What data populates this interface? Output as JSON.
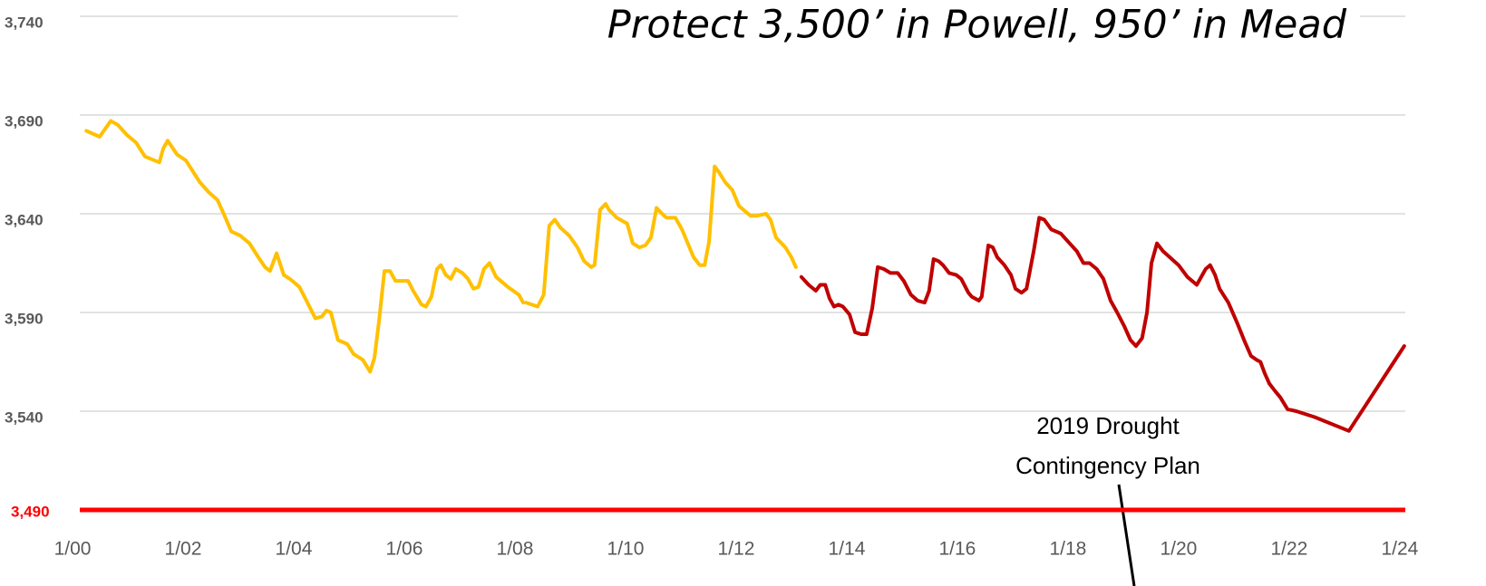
{
  "chart_data": {
    "type": "line",
    "title": "Protect 3,500’ in Powell, 950’ in Mead",
    "annotation": [
      "2019 Drought",
      "Contingency Plan"
    ],
    "xlim": [
      2000,
      2024.1
    ],
    "xticks": [
      {
        "value": 2000,
        "label": "1/00"
      },
      {
        "value": 2002,
        "label": "1/02"
      },
      {
        "value": 2004,
        "label": "1/04"
      },
      {
        "value": 2006,
        "label": "1/06"
      },
      {
        "value": 2008,
        "label": "1/08"
      },
      {
        "value": 2010,
        "label": "1/10"
      },
      {
        "value": 2012,
        "label": "1/12"
      },
      {
        "value": 2014,
        "label": "1/14"
      },
      {
        "value": 2016,
        "label": "1/16"
      },
      {
        "value": 2018,
        "label": "1/18"
      },
      {
        "value": 2020,
        "label": "1/20"
      },
      {
        "value": 2022,
        "label": "1/22"
      },
      {
        "value": 2024,
        "label": "1/24"
      }
    ],
    "ylim": [
      3490,
      3740
    ],
    "yticks": [
      {
        "value": 3540,
        "label": "3,540"
      },
      {
        "value": 3590,
        "label": "3,590"
      },
      {
        "value": 3640,
        "label": "3,640"
      },
      {
        "value": 3690,
        "label": "3,690"
      },
      {
        "value": 3740,
        "label": "3,740"
      }
    ],
    "threshold": {
      "value": 3490,
      "label": "3,490",
      "color": "#ff0000"
    },
    "grid": true,
    "series": [
      {
        "color": "#ffc000",
        "x": [
          2000.25,
          2000.49,
          2000.69,
          2000.82,
          2000.98,
          2001.15,
          2001.31,
          2001.57,
          2001.64,
          2001.72,
          2001.89,
          2002.05,
          2002.3,
          2002.46,
          2002.62,
          2002.75,
          2002.87,
          2003.03,
          2003.2,
          2003.36,
          2003.48,
          2003.57,
          2003.69,
          2003.82,
          2003.93,
          2004.1,
          2004.23,
          2004.39,
          2004.51,
          2004.59,
          2004.67,
          2004.8,
          2004.97,
          2005.08,
          2005.25,
          2005.38,
          2005.46,
          2005.54,
          2005.64,
          2005.74,
          2005.84,
          2006.07,
          2006.16,
          2006.31,
          2006.39,
          2006.49,
          2006.59,
          2006.66,
          2006.75,
          2006.84,
          2006.93,
          2007.05,
          2007.15,
          2007.25,
          2007.34,
          2007.44,
          2007.54,
          2007.66,
          2007.87,
          2008.07,
          2008.15,
          2008.17,
          2008.2,
          2008.41,
          2008.52,
          2008.62,
          2008.72,
          2008.82,
          2008.98,
          2009.13,
          2009.25,
          2009.38,
          2009.44,
          2009.54,
          2009.64,
          2009.7,
          2009.84,
          2010.03,
          2010.13,
          2010.25,
          2010.36,
          2010.46,
          2010.56,
          2010.66,
          2010.74,
          2010.9,
          2011.02,
          2011.23,
          2011.34,
          2011.43,
          2011.51,
          2011.61,
          2011.69,
          2011.8,
          2011.93,
          2012.05,
          2012.13,
          2012.26,
          2012.38,
          2012.54,
          2012.62,
          2012.72,
          2012.89,
          2013.0,
          2013.08
        ],
        "values": [
          3682,
          3679,
          3687,
          3685,
          3680,
          3676,
          3669,
          3666,
          3673,
          3677,
          3670,
          3667,
          3656,
          3651,
          3647,
          3639,
          3631,
          3629,
          3625,
          3618,
          3613,
          3611,
          3620,
          3609,
          3607,
          3603,
          3596,
          3587,
          3588,
          3591,
          3590,
          3576,
          3574,
          3569,
          3566,
          3560,
          3567,
          3585,
          3611,
          3611,
          3606,
          3606,
          3601,
          3594,
          3593,
          3598,
          3612,
          3614,
          3609,
          3607,
          3612,
          3610,
          3607,
          3602,
          3603,
          3612,
          3615,
          3608,
          3603,
          3599,
          3595,
          null,
          3595,
          3593,
          3599,
          3634,
          3637,
          3633,
          3629,
          3623,
          3616,
          3613,
          3614,
          3642,
          3645,
          3642,
          3638,
          3635,
          3625,
          3623,
          3624,
          3628,
          3643,
          3640,
          3638,
          3638,
          3632,
          3618,
          3614,
          3614,
          3626,
          3664,
          3661,
          3656,
          3652,
          3644,
          3642,
          3639,
          3639,
          3640,
          3637,
          3628,
          3623,
          3618,
          3613
        ]
      },
      {
        "color": "#c00000",
        "x": [
          2013.18,
          2013.31,
          2013.44,
          2013.52,
          2013.61,
          2013.69,
          2013.77,
          2013.85,
          2013.93,
          2014.05,
          2014.15,
          2014.26,
          2014.36,
          2014.46,
          2014.56,
          2014.67,
          2014.79,
          2014.92,
          2015.03,
          2015.16,
          2015.28,
          2015.41,
          2015.49,
          2015.57,
          2015.66,
          2015.74,
          2015.85,
          2015.98,
          2016.07,
          2016.2,
          2016.26,
          2016.39,
          2016.44,
          2016.56,
          2016.64,
          2016.72,
          2016.85,
          2016.97,
          2017.05,
          2017.16,
          2017.25,
          2017.38,
          2017.48,
          2017.57,
          2017.7,
          2017.87,
          2018.03,
          2018.16,
          2018.28,
          2018.39,
          2018.52,
          2018.64,
          2018.77,
          2018.89,
          2019.02,
          2019.13,
          2019.23,
          2019.34,
          2019.43,
          2019.51,
          2019.61,
          2019.72,
          2019.84,
          2020.0,
          2020.16,
          2020.33,
          2020.49,
          2020.57,
          2020.66,
          2020.74,
          2020.9,
          2021.07,
          2021.2,
          2021.31,
          2021.41,
          2021.48,
          2021.56,
          2021.64,
          2021.75,
          2021.84,
          2021.97,
          2022.13,
          2022.46,
          2023.08,
          2024.08
        ],
        "values": [
          3608,
          3604,
          3601,
          3604,
          3604,
          3597,
          3593,
          3594,
          3593,
          3589,
          3580,
          3579,
          3579,
          3592,
          3613,
          3612,
          3610,
          3610,
          3606,
          3599,
          3596,
          3595,
          3601,
          3617,
          3616,
          3614,
          3610,
          3609,
          3607,
          3600,
          3598,
          3596,
          3598,
          3624,
          3623,
          3618,
          3614,
          3609,
          3602,
          3600,
          3602,
          3621,
          3638,
          3637,
          3632,
          3630,
          3625,
          3621,
          3615,
          3615,
          3612,
          3607,
          3596,
          3590,
          3583,
          3576,
          3573,
          3577,
          3590,
          3615,
          3625,
          3621,
          3618,
          3614,
          3608,
          3604,
          3612,
          3614,
          3609,
          3602,
          3595,
          3584,
          3575,
          3568,
          3566,
          3565,
          3559,
          3554,
          3550,
          3547,
          3541,
          3540,
          3537,
          3530,
          3573
        ]
      }
    ]
  }
}
